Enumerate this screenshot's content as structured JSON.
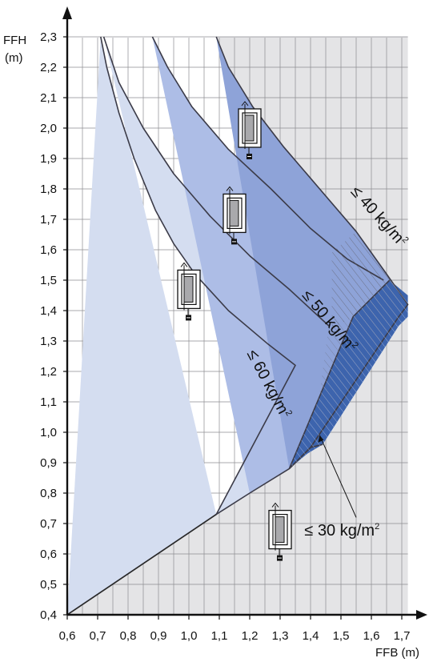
{
  "chart_data": {
    "type": "area",
    "y_axis": {
      "label_line1": "FFH",
      "label_line2": "(m)",
      "range": [
        0.4,
        2.3
      ],
      "ticks": [
        "2,3",
        "2,2",
        "2,1",
        "2,0",
        "1,9",
        "1,8",
        "1,7",
        "1,6",
        "1,5",
        "1,4",
        "1,3",
        "1,2",
        "1,1",
        "1,0",
        "0,9",
        "0,8",
        "0,7",
        "0,6",
        "0,5",
        "0,4"
      ]
    },
    "x_axis": {
      "label": "FFB (m)",
      "range": [
        0.6,
        1.7
      ],
      "ticks": [
        "0,6",
        "0,7",
        "0,8",
        "0,9",
        "1,0",
        "1,1",
        "1,2",
        "1,3",
        "1,4",
        "1,5",
        "1,6",
        "1,7"
      ]
    },
    "grid": true,
    "series": [
      {
        "name": "≤ 60 kg/m²",
        "color": "#d4ddf0",
        "outer": [
          [
            0.72,
            2.3
          ],
          [
            0.77,
            2.15
          ],
          [
            0.85,
            2.0
          ],
          [
            0.95,
            1.85
          ],
          [
            1.07,
            1.71
          ],
          [
            1.2,
            1.58
          ],
          [
            1.33,
            1.47
          ],
          [
            1.46,
            1.35
          ],
          [
            1.2,
            0.8
          ],
          [
            1.09,
            0.73
          ]
        ],
        "inner": [
          [
            0.6,
            0.4
          ],
          [
            1.09,
            0.73
          ],
          [
            1.35,
            1.22
          ],
          [
            1.26,
            1.29
          ],
          [
            1.13,
            1.4
          ],
          [
            1.02,
            1.52
          ],
          [
            0.95,
            1.62
          ],
          [
            0.89,
            1.73
          ],
          [
            0.82,
            1.9
          ],
          [
            0.77,
            2.05
          ],
          [
            0.73,
            2.2
          ],
          [
            0.71,
            2.3
          ]
        ]
      },
      {
        "name": "≤ 50 kg/m²",
        "color": "#adbde6",
        "outer": [
          [
            0.88,
            2.3
          ],
          [
            0.93,
            2.2
          ],
          [
            1.01,
            2.07
          ],
          [
            1.13,
            1.93
          ],
          [
            1.27,
            1.8
          ],
          [
            1.4,
            1.67
          ],
          [
            1.52,
            1.57
          ],
          [
            1.64,
            1.5
          ],
          [
            1.54,
            1.38
          ],
          [
            1.33,
            0.88
          ],
          [
            1.2,
            0.8
          ]
        ]
      },
      {
        "name": "≤ 40 kg/m²",
        "color": "#8ea3d8",
        "outer": [
          [
            1.09,
            2.3
          ],
          [
            1.13,
            2.2
          ],
          [
            1.21,
            2.07
          ],
          [
            1.31,
            1.94
          ],
          [
            1.43,
            1.8
          ],
          [
            1.55,
            1.66
          ],
          [
            1.65,
            1.52
          ],
          [
            1.72,
            1.42
          ],
          [
            1.69,
            1.38
          ],
          [
            1.4,
            0.95
          ],
          [
            1.33,
            0.88
          ]
        ]
      },
      {
        "name": "≤ 30 kg/m²",
        "color": "#3d64ad",
        "outer": [
          [
            1.66,
            1.5
          ],
          [
            1.72,
            1.45
          ],
          [
            1.72,
            1.38
          ],
          [
            1.69,
            1.35
          ],
          [
            1.44,
            0.96
          ],
          [
            1.39,
            0.93
          ],
          [
            1.33,
            0.88
          ],
          [
            1.54,
            1.38
          ]
        ]
      }
    ],
    "grey_region": [
      [
        0.6,
        0.4
      ],
      [
        1.09,
        0.73
      ],
      [
        1.2,
        0.8
      ],
      [
        1.33,
        0.88
      ],
      [
        1.4,
        0.95
      ],
      [
        1.44,
        0.96
      ],
      [
        1.69,
        1.35
      ],
      [
        1.72,
        1.38
      ],
      [
        1.72,
        1.45
      ],
      [
        1.66,
        1.5
      ],
      [
        1.65,
        1.52
      ],
      [
        1.55,
        1.66
      ],
      [
        1.43,
        1.8
      ],
      [
        1.31,
        1.94
      ],
      [
        1.21,
        2.07
      ],
      [
        1.13,
        2.2
      ],
      [
        1.09,
        2.3
      ],
      [
        1.72,
        2.3
      ],
      [
        1.72,
        0.4
      ]
    ],
    "annotations": [
      {
        "text": "≤ 60 kg/m",
        "sup": "2",
        "x": 1.19,
        "y": 1.26,
        "rotate": 62
      },
      {
        "text": "≤ 50 kg/m",
        "sup": "2",
        "x": 1.37,
        "y": 1.45,
        "rotate": 50
      },
      {
        "text": "≤ 40 kg/m",
        "sup": "2",
        "x": 1.53,
        "y": 1.79,
        "rotate": 48
      },
      {
        "text": "≤ 30 kg/m",
        "sup": "2",
        "x": 1.38,
        "y": 0.66,
        "rotate": 0
      }
    ],
    "callout": {
      "from": [
        1.55,
        0.72
      ],
      "to": [
        1.43,
        0.99
      ]
    },
    "window_icons": [
      {
        "x": 1.2,
        "y": 2.0
      },
      {
        "x": 1.15,
        "y": 1.72
      },
      {
        "x": 1.0,
        "y": 1.47
      },
      {
        "x": 1.3,
        "y": 0.68
      }
    ]
  }
}
